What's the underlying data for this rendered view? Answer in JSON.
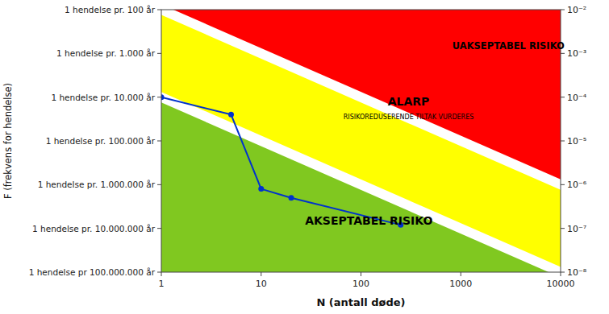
{
  "chart_data": {
    "type": "line",
    "log": true,
    "grid": false,
    "xlabel": "N (antall døde)",
    "ylabel": "F (frekvens for hendelse)",
    "xlim": [
      1,
      10000
    ],
    "ylim": [
      1e-08,
      0.01
    ],
    "xticks": [
      1,
      10,
      100,
      1000,
      10000
    ],
    "yticks": [
      {
        "value": 0.01,
        "label": "1 hendelse pr. 100 år"
      },
      {
        "value": 0.001,
        "label": "1 hendelse pr. 1.000 år"
      },
      {
        "value": 0.0001,
        "label": "1 hendelse pr. 10.000 år"
      },
      {
        "value": 1e-05,
        "label": "1 hendelse pr. 100.000 år"
      },
      {
        "value": 1e-06,
        "label": "1 hendelse pr. 1.000.000 år"
      },
      {
        "value": 1e-07,
        "label": "1 hendelse pr. 10.000.000 år"
      },
      {
        "value": 1e-08,
        "label": "1 hendelse pr 100.000.000 år"
      }
    ],
    "y2lim": [
      1e-08,
      0.01
    ],
    "y2ticks": [
      {
        "value": 0.01,
        "label": "10⁻²"
      },
      {
        "value": 0.001,
        "label": "10⁻³"
      },
      {
        "value": 0.0001,
        "label": "10⁻⁴"
      },
      {
        "value": 1e-05,
        "label": "10⁻⁵"
      },
      {
        "value": 1e-06,
        "label": "10⁻⁶"
      },
      {
        "value": 1e-07,
        "label": "10⁻⁷"
      },
      {
        "value": 1e-08,
        "label": "10⁻⁸"
      }
    ],
    "boundaries": {
      "x": [
        1,
        10000
      ],
      "upper": [
        0.01,
        1e-06
      ],
      "lower": [
        0.0001,
        1e-08
      ],
      "color": "#ffffff"
    },
    "regions": [
      {
        "label": "UAKSEPTABEL RISIKO",
        "color": "#ff0000"
      },
      {
        "label": "ALARP",
        "sublabel": "RISIKOREDUSERENDE TILTAK VURDERES",
        "color": "#ffff00"
      },
      {
        "label": "AKSEPTABEL RISIKO",
        "color": "#80c820"
      }
    ],
    "x": [
      1,
      5,
      10,
      20,
      250
    ],
    "series": [
      {
        "color": "#0033cc",
        "marker": "circle",
        "values": [
          0.0001,
          4e-05,
          8e-07,
          5e-07,
          1.2e-07
        ]
      }
    ]
  }
}
